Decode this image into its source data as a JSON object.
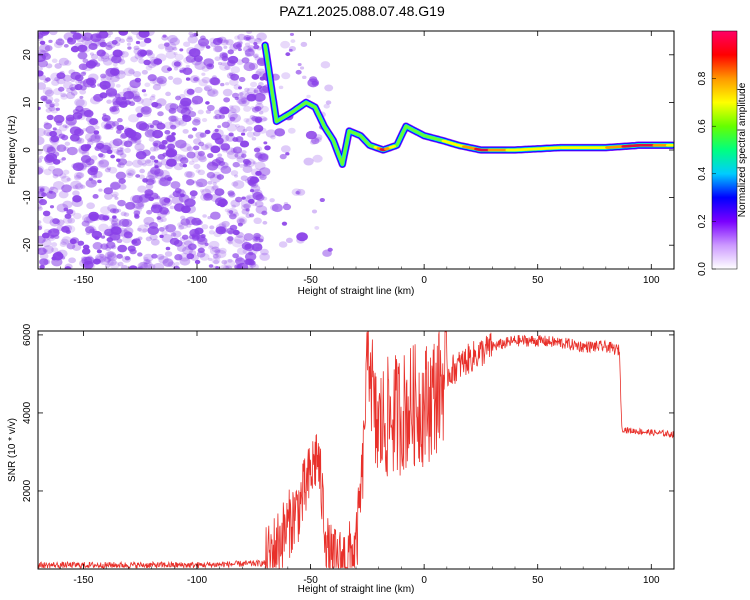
{
  "title": "PAZ1.2025.088.07.48.G19",
  "colors": {
    "snr_line": "#e8302a",
    "scatter_noise": "#8a40e8",
    "track_core": "#e0103a"
  },
  "chart_data": [
    {
      "type": "heatmap",
      "xlabel": "Height of straight line (km)",
      "ylabel": "Frequency (Hz)",
      "xlim": [
        -170,
        110
      ],
      "ylim": [
        -25,
        25
      ],
      "xticks": [
        "-150",
        "-100",
        "-50",
        "0",
        "50",
        "100"
      ],
      "yticks": [
        "-20",
        "-10",
        "0",
        "10",
        "20"
      ],
      "colorbar": {
        "label": "Normalized spectral amplitude",
        "range": [
          0.0,
          1.0
        ],
        "ticks": [
          "0.0",
          "0.2",
          "0.4",
          "0.6",
          "0.8"
        ],
        "colormap": [
          "#ffffff",
          "#cc99ff",
          "#7a00ff",
          "#0000ff",
          "#00ccff",
          "#00ff80",
          "#66ff00",
          "#ffff00",
          "#ff9900",
          "#ff0000",
          "#ff0066"
        ]
      },
      "track": [
        {
          "x": -70,
          "y": 22,
          "amp": 0.5
        },
        {
          "x": -65,
          "y": 6,
          "amp": 0.4
        },
        {
          "x": -58,
          "y": 8,
          "amp": 0.5
        },
        {
          "x": -52,
          "y": 10,
          "amp": 0.45
        },
        {
          "x": -48,
          "y": 9,
          "amp": 0.35
        },
        {
          "x": -44,
          "y": 5,
          "amp": 0.3
        },
        {
          "x": -40,
          "y": 2,
          "amp": 0.3
        },
        {
          "x": -36,
          "y": -3,
          "amp": 0.3
        },
        {
          "x": -33,
          "y": 4,
          "amp": 0.25
        },
        {
          "x": -28,
          "y": 3,
          "amp": 0.3
        },
        {
          "x": -24,
          "y": 1,
          "amp": 0.4
        },
        {
          "x": -18,
          "y": 0,
          "amp": 0.8
        },
        {
          "x": -12,
          "y": 1,
          "amp": 0.5
        },
        {
          "x": -8,
          "y": 5,
          "amp": 0.45
        },
        {
          "x": -4,
          "y": 4,
          "amp": 0.4
        },
        {
          "x": 0,
          "y": 3,
          "amp": 0.5
        },
        {
          "x": 8,
          "y": 2,
          "amp": 0.55
        },
        {
          "x": 15,
          "y": 1,
          "amp": 0.6
        },
        {
          "x": 25,
          "y": 0,
          "amp": 0.8
        },
        {
          "x": 40,
          "y": 0,
          "amp": 0.6
        },
        {
          "x": 60,
          "y": 0.5,
          "amp": 0.55
        },
        {
          "x": 80,
          "y": 0.5,
          "amp": 0.65
        },
        {
          "x": 95,
          "y": 1,
          "amp": 0.85
        },
        {
          "x": 110,
          "y": 1,
          "amp": 0.6
        }
      ]
    },
    {
      "type": "line",
      "xlabel": "Height of straight line (km)",
      "ylabel": "SNR (10 * v/v)",
      "xlim": [
        -170,
        110
      ],
      "ylim": [
        0,
        6100
      ],
      "xticks": [
        "-150",
        "-100",
        "-50",
        "0",
        "50",
        "100"
      ],
      "yticks": [
        "2000",
        "4000",
        "6000"
      ],
      "series": [
        {
          "x": [
            -170,
            -100,
            -70,
            -62,
            -55,
            -50,
            -47,
            -44,
            -42,
            -38,
            -35,
            -30,
            -27,
            -25,
            -24,
            -22,
            -20,
            -15,
            -10,
            -5,
            0,
            5,
            10,
            20,
            30,
            40,
            50,
            60,
            70,
            80,
            86,
            87,
            90,
            100,
            110
          ],
          "values": [
            100,
            100,
            150,
            900,
            1600,
            2400,
            3000,
            1300,
            300,
            150,
            250,
            500,
            2600,
            5500,
            5800,
            3700,
            3600,
            3900,
            4000,
            4200,
            4200,
            4500,
            5000,
            5400,
            5700,
            5850,
            5850,
            5800,
            5700,
            5700,
            5600,
            3600,
            3550,
            3500,
            3450
          ]
        }
      ]
    }
  ]
}
